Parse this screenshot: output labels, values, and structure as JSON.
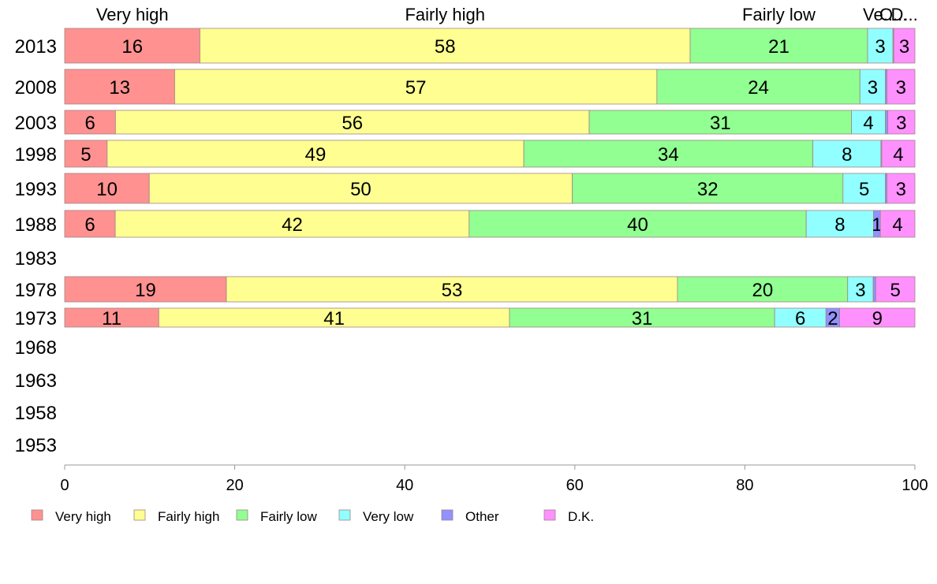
{
  "chart_data": {
    "type": "bar",
    "orientation": "horizontal",
    "stacked": true,
    "categories": [
      "2013",
      "2008",
      "2003",
      "1998",
      "1993",
      "1988",
      "1983",
      "1978",
      "1973",
      "1968",
      "1963",
      "1958",
      "1953"
    ],
    "series": [
      {
        "name": "Very high",
        "color": "#ff9191",
        "values": [
          16,
          13,
          6,
          5,
          10,
          6,
          null,
          19,
          11,
          null,
          null,
          null,
          null
        ],
        "labels": [
          "16",
          "13",
          "6",
          "5",
          "10",
          "6",
          "",
          "19",
          "11",
          "",
          "",
          "",
          ""
        ]
      },
      {
        "name": "Fairly high",
        "color": "#ffff91",
        "values": [
          58,
          57,
          56,
          49,
          50,
          42,
          null,
          53,
          41,
          null,
          null,
          null,
          null
        ],
        "labels": [
          "58",
          "57",
          "56",
          "49",
          "50",
          "42",
          "",
          "53",
          "41",
          "",
          "",
          "",
          ""
        ]
      },
      {
        "name": "Fairly low",
        "color": "#91ff91",
        "values": [
          21,
          24,
          31,
          34,
          32,
          40,
          null,
          20,
          31,
          null,
          null,
          null,
          null
        ],
        "labels": [
          "21",
          "24",
          "31",
          "34",
          "32",
          "40",
          "",
          "20",
          "31",
          "",
          "",
          "",
          ""
        ]
      },
      {
        "name": "Very low",
        "color": "#91ffff",
        "values": [
          3,
          3,
          4,
          8,
          5,
          8,
          null,
          3,
          6,
          null,
          null,
          null,
          null
        ],
        "labels": [
          "3",
          "3",
          "4",
          "8",
          "5",
          "8",
          "",
          "3",
          "6",
          "",
          "",
          "",
          ""
        ]
      },
      {
        "name": "Other",
        "color": "#9191ff",
        "values": [
          0.1,
          0.2,
          0.3,
          0.1,
          0.2,
          0.8,
          null,
          0.3,
          1.6,
          null,
          null,
          null,
          null
        ],
        "labels": [
          "",
          "",
          "",
          "",
          "",
          "1",
          "",
          "",
          "2",
          "",
          "",
          "",
          ""
        ]
      },
      {
        "name": "D.K.",
        "color": "#ff91ff",
        "values": [
          2.5,
          3.3,
          3.2,
          3.9,
          3.3,
          4.1,
          null,
          4.6,
          8.8,
          null,
          null,
          null,
          null
        ],
        "labels": [
          "3",
          "3",
          "3",
          "4",
          "3",
          "4",
          "",
          "5",
          "9",
          "",
          "",
          "",
          ""
        ]
      }
    ],
    "top_labels": [
      "Very high",
      "Fairly high",
      "Fairly low",
      "Ve...",
      "O...",
      "D..."
    ],
    "xlim": [
      0,
      100
    ],
    "xticks": [
      0,
      20,
      40,
      60,
      80,
      100
    ],
    "grid": false,
    "legend": "bottom"
  }
}
